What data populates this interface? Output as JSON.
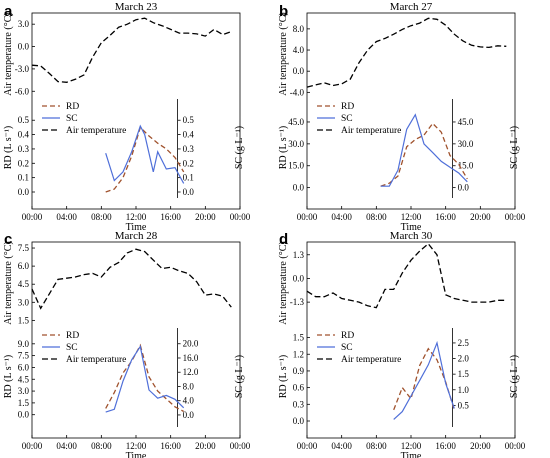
{
  "colors": {
    "rd": "#a0522d",
    "sc": "#4f6fd9",
    "air": "#000000"
  },
  "chart_data": [
    {
      "panel": "a",
      "title": "March 23",
      "type": "line",
      "xlabel": "Time",
      "x_ticks": [
        "00:00",
        "04:00",
        "08:00",
        "12:00",
        "16:00",
        "20:00",
        "00:00"
      ],
      "xlim": [
        0,
        24
      ],
      "top": {
        "ylabel": "Air temperature (°C)",
        "ylim": [
          -6.5,
          4.5
        ],
        "yticks": [
          3.0,
          0.0,
          -3.0,
          -6.0
        ],
        "ytick_labels": [
          "3.0",
          "0.0",
          "-3.0",
          "-6.0"
        ],
        "air": {
          "x": [
            0,
            1,
            2,
            3,
            4,
            5,
            6,
            7,
            8,
            9,
            10,
            11,
            12,
            13,
            14,
            15,
            16,
            17,
            18,
            19,
            20,
            21,
            22,
            23
          ],
          "y": [
            -2.5,
            -2.6,
            -3.6,
            -4.7,
            -4.8,
            -4.4,
            -3.8,
            -1.4,
            0.5,
            1.5,
            2.6,
            3.0,
            3.6,
            3.8,
            3.2,
            2.8,
            2.3,
            1.8,
            1.8,
            1.7,
            1.4,
            2.3,
            1.6,
            2.0
          ]
        }
      },
      "bottom": {
        "ylabel_left": "RD (L s⁻¹)",
        "ylabel_right": "SC (g L⁻¹)",
        "ylim_left": [
          0,
          0.62
        ],
        "yticks_left": [
          0.0,
          0.1,
          0.2,
          0.3,
          0.4,
          0.5
        ],
        "ytick_labels_left": [
          "0.0",
          "0.1",
          "0.2",
          "0.3",
          "0.4",
          "0.5"
        ],
        "ylim_right": [
          0,
          0.62
        ],
        "yticks_right": [
          0.0,
          0.1,
          0.2,
          0.3,
          0.4,
          0.5
        ],
        "ytick_labels_right": [
          "0.0",
          "0.1",
          "0.2",
          "0.3",
          "0.4",
          "0.5"
        ],
        "rd": {
          "x": [
            8.5,
            9.5,
            10.5,
            11.5,
            12.5,
            13.5,
            14.5,
            15.5,
            16.5,
            17.5
          ],
          "y": [
            0.0,
            0.02,
            0.1,
            0.25,
            0.45,
            0.39,
            0.34,
            0.3,
            0.24,
            0.14
          ]
        },
        "sc": {
          "x": [
            8.5,
            9.5,
            10.5,
            11.5,
            12.5,
            13.0,
            14.0,
            14.5,
            15.5,
            16.5,
            17.5
          ],
          "y": [
            0.27,
            0.08,
            0.14,
            0.28,
            0.46,
            0.4,
            0.14,
            0.28,
            0.16,
            0.17,
            0.06
          ]
        },
        "legend": [
          "RD",
          "SC",
          "Air temperature"
        ]
      }
    },
    {
      "panel": "b",
      "title": "March 27",
      "type": "line",
      "xlabel": "Time",
      "x_ticks": [
        "00:00",
        "04:00",
        "08:00",
        "12:00",
        "16:00",
        "20:00",
        "00:00"
      ],
      "xlim": [
        0,
        24
      ],
      "top": {
        "ylabel": "Air temperature (°C)",
        "ylim": [
          -4.5,
          11
        ],
        "yticks": [
          8.0,
          4.0,
          0.0,
          -4.0
        ],
        "ytick_labels": [
          "8.0",
          "4.0",
          "0.0",
          "-4.0"
        ],
        "air": {
          "x": [
            0,
            1,
            2,
            3,
            4,
            5,
            6,
            7,
            8,
            9,
            10,
            11,
            12,
            13,
            14,
            15,
            16,
            17,
            18,
            19,
            20,
            21,
            22,
            23
          ],
          "y": [
            -3.0,
            -2.6,
            -2.2,
            -2.7,
            -2.4,
            -1.5,
            1.6,
            4.0,
            5.6,
            6.2,
            7.0,
            7.9,
            8.6,
            9.1,
            10.0,
            9.8,
            8.7,
            7.0,
            5.7,
            4.9,
            4.6,
            4.5,
            4.8,
            4.7
          ]
        }
      },
      "bottom": {
        "ylabel_left": "RD (L s⁻¹)",
        "ylabel_right": "SC (g L⁻¹)",
        "ylim_left": [
          -3,
          58
        ],
        "yticks_left": [
          0.0,
          15.0,
          30.0,
          45.0
        ],
        "ytick_labels_left": [
          "0.0",
          "15.0",
          "30.0",
          "45.0"
        ],
        "ylim_right": [
          -3,
          58
        ],
        "yticks_right": [
          0.0,
          15.0,
          30.0,
          45.0
        ],
        "ytick_labels_right": [
          "0.0",
          "15.0",
          "30.0",
          "45.0"
        ],
        "rd": {
          "x": [
            8.5,
            9.5,
            10.5,
            11.5,
            12.5,
            13.5,
            14.5,
            15.5,
            16.5,
            17.5,
            18.5
          ],
          "y": [
            1,
            3,
            8,
            28,
            33,
            36,
            44,
            38,
            22,
            16,
            6
          ]
        },
        "sc": {
          "x": [
            8.5,
            9.5,
            10.5,
            11.5,
            12.5,
            13.5,
            14.5,
            15.5,
            16.5,
            17.5,
            18.5
          ],
          "y": [
            1,
            1,
            12,
            40,
            50,
            30,
            24,
            18,
            14,
            10,
            4
          ]
        },
        "legend": [
          "RD",
          "SC",
          "Air temperature"
        ]
      }
    },
    {
      "panel": "c",
      "title": "March 28",
      "type": "line",
      "xlabel": "Time",
      "x_ticks": [
        "00:00",
        "04:00",
        "08:00",
        "12:00",
        "16:00",
        "20:00",
        "00:00"
      ],
      "xlim": [
        0,
        24
      ],
      "top": {
        "ylabel": "Air temperature (°C)",
        "ylim": [
          1.2,
          8
        ],
        "yticks": [
          7.5,
          6.0,
          4.5,
          3.0,
          1.5
        ],
        "ytick_labels": [
          "7.5",
          "6.0",
          "4.5",
          "3.0",
          "1.5"
        ],
        "air": {
          "x": [
            0,
            1,
            2,
            3,
            4,
            5,
            6,
            7,
            8,
            9,
            10,
            11,
            12,
            13,
            14,
            15,
            16,
            17,
            18,
            19,
            20,
            21,
            22,
            23
          ],
          "y": [
            4.1,
            2.5,
            3.7,
            4.9,
            5.0,
            5.1,
            5.3,
            5.4,
            5.1,
            5.9,
            6.3,
            7.1,
            7.4,
            7.2,
            6.5,
            5.8,
            5.9,
            5.6,
            5.4,
            4.7,
            3.6,
            3.7,
            3.5,
            2.6
          ]
        }
      },
      "bottom": {
        "ylabel_left": "RD (L s⁻¹)",
        "ylabel_right": "SC (g L⁻¹)",
        "ylim_left": [
          -0.8,
          10.5
        ],
        "yticks_left": [
          0.0,
          1.5,
          3.0,
          4.5,
          6.0,
          7.5,
          9.0
        ],
        "ytick_labels_left": [
          "0.0",
          "1.5",
          "3.0",
          "4.5",
          "6.0",
          "7.5",
          "9.0"
        ],
        "ylim_right": [
          -1.7,
          23.3
        ],
        "yticks_right": [
          0.0,
          4.0,
          8.0,
          12.0,
          16.0,
          20.0
        ],
        "ytick_labels_right": [
          "0.0",
          "4.0",
          "8.0",
          "12.0",
          "16.0",
          "20.0"
        ],
        "rd": {
          "x": [
            8.5,
            9.5,
            10.5,
            11.5,
            12.5,
            13.5,
            14.5,
            15.5,
            16.5,
            17.5
          ],
          "y": [
            0.8,
            2.8,
            5.3,
            6.8,
            8.8,
            4.8,
            3.0,
            2.0,
            1.0,
            0.4
          ]
        },
        "sc": {
          "x": [
            8.5,
            9.5,
            10.5,
            11.5,
            12.5,
            13.5,
            14.5,
            15.5,
            16.5,
            17.5
          ],
          "y": [
            0.8,
            1.6,
            9.5,
            15.5,
            19.2,
            7.0,
            4.7,
            5.5,
            4.4,
            2.0
          ]
        },
        "legend": [
          "RD",
          "SC",
          "Air temperature"
        ]
      }
    },
    {
      "panel": "d",
      "title": "March 30",
      "type": "line",
      "xlabel": "Time",
      "x_ticks": [
        "00:00",
        "04:00",
        "08:00",
        "12:00",
        "16:00",
        "20:00",
        "00:00"
      ],
      "xlim": [
        0,
        24
      ],
      "top": {
        "ylabel": "Air temperature (°C)",
        "ylim": [
          -2.5,
          2.0
        ],
        "yticks": [
          1.3,
          0.0,
          -1.3
        ],
        "ytick_labels": [
          "1.3",
          "0.0",
          "-1.3"
        ],
        "air": {
          "x": [
            0,
            1,
            2,
            3,
            4,
            5,
            6,
            7,
            8,
            9,
            10,
            11,
            12,
            13,
            14,
            15,
            16,
            17,
            18,
            19,
            20,
            21,
            22,
            23
          ],
          "y": [
            -0.7,
            -1.0,
            -1.0,
            -0.8,
            -1.1,
            -1.2,
            -1.3,
            -1.5,
            -1.6,
            -0.6,
            -0.6,
            0.3,
            1.0,
            1.5,
            1.9,
            1.3,
            -0.9,
            -1.1,
            -1.2,
            -1.3,
            -1.3,
            -1.3,
            -1.2,
            -1.2
          ]
        }
      },
      "bottom": {
        "ylabel_left": "RD (L s⁻¹)",
        "ylabel_right": "SC (g L⁻¹)",
        "ylim_left": [
          0,
          1.6
        ],
        "yticks_left": [
          0.0,
          0.3,
          0.6,
          0.9,
          1.2,
          1.5
        ],
        "ytick_labels_left": [
          "0.0",
          "0.3",
          "0.6",
          "0.9",
          "1.2",
          "1.5"
        ],
        "ylim_right": [
          0,
          2.85
        ],
        "yticks_right": [
          0.5,
          1.0,
          1.5,
          2.0,
          2.5
        ],
        "ytick_labels_right": [
          "0.5",
          "1.0",
          "1.5",
          "2.0",
          "2.5"
        ],
        "rd": {
          "x": [
            10.0,
            11.0,
            12.0,
            13.0,
            14.0,
            15.0,
            16.0,
            17.0
          ],
          "y": [
            0.2,
            0.6,
            0.4,
            1.0,
            1.3,
            1.1,
            0.7,
            0.2
          ]
        },
        "sc": {
          "x": [
            10.0,
            11.0,
            12.0,
            13.0,
            14.0,
            15.0,
            16.0,
            17.0
          ],
          "y": [
            0.05,
            0.3,
            0.8,
            1.3,
            1.8,
            2.5,
            1.2,
            0.4
          ]
        },
        "legend": [
          "RD",
          "SC",
          "Air temperature"
        ]
      }
    }
  ]
}
